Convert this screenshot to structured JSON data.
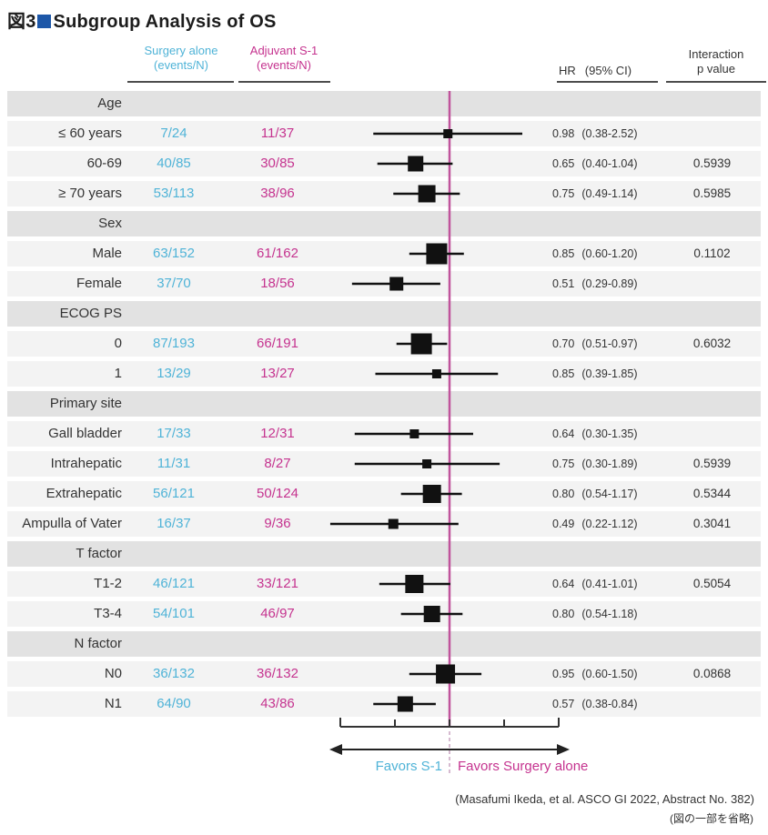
{
  "title": {
    "figure_label": "図3",
    "square_icon": "blue-square",
    "text": "Subgroup Analysis of OS"
  },
  "header": {
    "surgery": {
      "line1": "Surgery alone",
      "line2": "(events/N)"
    },
    "s1": {
      "line1": "Adjuvant S-1",
      "line2": "(events/N)"
    },
    "hr": {
      "label": "HR",
      "ci_label": "(95% CI)"
    },
    "interaction": {
      "line1": "Interaction",
      "line2": "p value"
    }
  },
  "axis": {
    "scale": "log",
    "ticks": [
      0.25,
      0.5,
      1,
      2,
      4
    ],
    "reference_value": 1,
    "favors_left": "Favors S-1",
    "favors_right": "Favors Surgery alone"
  },
  "footer": {
    "citation": "(Masafumi Ikeda, et al. ASCO GI 2022, Abstract No. 382)",
    "note": "(図の一部を省略)"
  },
  "colors": {
    "surgery_blue": "#4fb3d7",
    "s1_magenta": "#c5338f",
    "ref_line_pink": "#c0549c",
    "marker_black": "#111111",
    "group_band_gray": "#e2e2e2",
    "data_band_gray": "#f3f3f3",
    "title_square_blue": "#1d57a8",
    "rule_gray": "#4d4d4d",
    "text_dark": "#333333"
  },
  "chart_data": {
    "type": "scatter",
    "chart_kind": "forest-plot",
    "title": "Subgroup Analysis of OS",
    "x_scale": "log",
    "x_ref": 1.0,
    "x_ticks": [
      0.25,
      0.5,
      1,
      2,
      4
    ],
    "legend": {
      "left_direction": "Favors S-1",
      "right_direction": "Favors Surgery alone"
    },
    "rows": [
      {
        "row_type": "group",
        "label": "Age"
      },
      {
        "row_type": "data",
        "label": "≤ 60 years",
        "surgery": "7/24",
        "s1": "11/37",
        "hr": 0.98,
        "ci_low": 0.38,
        "ci_high": 2.52,
        "hr_text": "0.98",
        "ci_text": "(0.38-2.52)",
        "p_value": ""
      },
      {
        "row_type": "data",
        "label": "60-69",
        "surgery": "40/85",
        "s1": "30/85",
        "hr": 0.65,
        "ci_low": 0.4,
        "ci_high": 1.04,
        "hr_text": "0.65",
        "ci_text": "(0.40-1.04)",
        "p_value": "0.5939"
      },
      {
        "row_type": "data",
        "label": "≥ 70 years",
        "surgery": "53/113",
        "s1": "38/96",
        "hr": 0.75,
        "ci_low": 0.49,
        "ci_high": 1.14,
        "hr_text": "0.75",
        "ci_text": "(0.49-1.14)",
        "p_value": "0.5985"
      },
      {
        "row_type": "group",
        "label": "Sex"
      },
      {
        "row_type": "data",
        "label": "Male",
        "surgery": "63/152",
        "s1": "61/162",
        "hr": 0.85,
        "ci_low": 0.6,
        "ci_high": 1.2,
        "hr_text": "0.85",
        "ci_text": "(0.60-1.20)",
        "p_value": "0.1102"
      },
      {
        "row_type": "data",
        "label": "Female",
        "surgery": "37/70",
        "s1": "18/56",
        "hr": 0.51,
        "ci_low": 0.29,
        "ci_high": 0.89,
        "hr_text": "0.51",
        "ci_text": "(0.29-0.89)",
        "p_value": ""
      },
      {
        "row_type": "group",
        "label": "ECOG PS"
      },
      {
        "row_type": "data",
        "label": "0",
        "surgery": "87/193",
        "s1": "66/191",
        "hr": 0.7,
        "ci_low": 0.51,
        "ci_high": 0.97,
        "hr_text": "0.70",
        "ci_text": "(0.51-0.97)",
        "p_value": "0.6032"
      },
      {
        "row_type": "data",
        "label": "1",
        "surgery": "13/29",
        "s1": "13/27",
        "hr": 0.85,
        "ci_low": 0.39,
        "ci_high": 1.85,
        "hr_text": "0.85",
        "ci_text": "(0.39-1.85)",
        "p_value": ""
      },
      {
        "row_type": "group",
        "label": "Primary site"
      },
      {
        "row_type": "data",
        "label": "Gall bladder",
        "surgery": "17/33",
        "s1": "12/31",
        "hr": 0.64,
        "ci_low": 0.3,
        "ci_high": 1.35,
        "hr_text": "0.64",
        "ci_text": "(0.30-1.35)",
        "p_value": ""
      },
      {
        "row_type": "data",
        "label": "Intrahepatic",
        "surgery": "11/31",
        "s1": "8/27",
        "hr": 0.75,
        "ci_low": 0.3,
        "ci_high": 1.89,
        "hr_text": "0.75",
        "ci_text": "(0.30-1.89)",
        "p_value": "0.5939"
      },
      {
        "row_type": "data",
        "label": "Extrahepatic",
        "surgery": "56/121",
        "s1": "50/124",
        "hr": 0.8,
        "ci_low": 0.54,
        "ci_high": 1.17,
        "hr_text": "0.80",
        "ci_text": "(0.54-1.17)",
        "p_value": "0.5344"
      },
      {
        "row_type": "data",
        "label": "Ampulla of Vater",
        "surgery": "16/37",
        "s1": "9/36",
        "hr": 0.49,
        "ci_low": 0.22,
        "ci_high": 1.12,
        "hr_text": "0.49",
        "ci_text": "(0.22-1.12)",
        "p_value": "0.3041"
      },
      {
        "row_type": "group",
        "label": "T factor"
      },
      {
        "row_type": "data",
        "label": "T1-2",
        "surgery": "46/121",
        "s1": "33/121",
        "hr": 0.64,
        "ci_low": 0.41,
        "ci_high": 1.01,
        "hr_text": "0.64",
        "ci_text": "(0.41-1.01)",
        "p_value": "0.5054"
      },
      {
        "row_type": "data",
        "label": "T3-4",
        "surgery": "54/101",
        "s1": "46/97",
        "hr": 0.8,
        "ci_low": 0.54,
        "ci_high": 1.18,
        "hr_text": "0.80",
        "ci_text": "(0.54-1.18)",
        "p_value": ""
      },
      {
        "row_type": "group",
        "label": "N factor"
      },
      {
        "row_type": "data",
        "label": "N0",
        "surgery": "36/132",
        "s1": "36/132",
        "hr": 0.95,
        "ci_low": 0.6,
        "ci_high": 1.5,
        "hr_text": "0.95",
        "ci_text": "(0.60-1.50)",
        "p_value": "0.0868"
      },
      {
        "row_type": "data",
        "label": "N1",
        "surgery": "64/90",
        "s1": "43/86",
        "hr": 0.57,
        "ci_low": 0.38,
        "ci_high": 0.84,
        "hr_text": "0.57",
        "ci_text": "(0.38-0.84)",
        "p_value": ""
      }
    ]
  }
}
